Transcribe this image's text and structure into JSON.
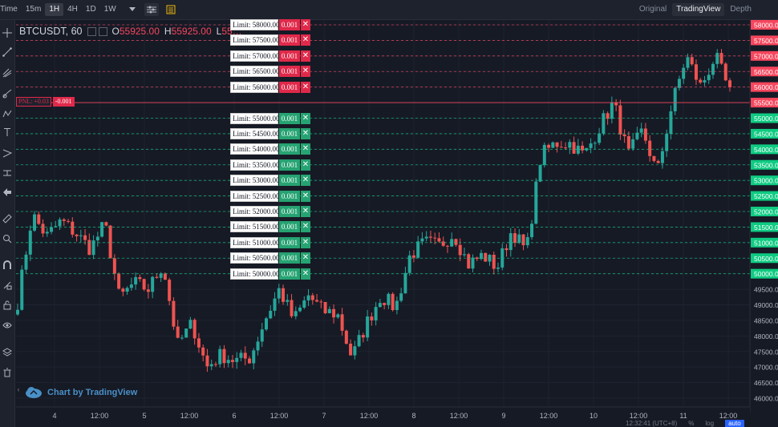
{
  "toolbar": {
    "time_label": "Time",
    "intervals": [
      "15m",
      "1H",
      "4H",
      "1D",
      "1W"
    ],
    "active_interval": "1H",
    "view_tabs": [
      "Original",
      "TradingView",
      "Depth"
    ],
    "active_view": "TradingView"
  },
  "legend": {
    "symbol": "BTCUSDT, 60",
    "o_label": "O",
    "o_value": "55925.00",
    "h_label": "H",
    "h_value": "55925.00",
    "l_label": "L",
    "l_value": "55…"
  },
  "pnl": {
    "label": "PNL: +0.03",
    "qty": "-0.001"
  },
  "orders": [
    {
      "label": "Limit: 58000.00",
      "qty": "0.001",
      "side": "sell",
      "price": 58000
    },
    {
      "label": "Limit: 57500.00",
      "qty": "0.001",
      "side": "sell",
      "price": 57500
    },
    {
      "label": "Limit: 57000.00",
      "qty": "0.001",
      "side": "sell",
      "price": 57000
    },
    {
      "label": "Limit: 56500.00",
      "qty": "0.001",
      "side": "sell",
      "price": 56500
    },
    {
      "label": "Limit: 56000.00",
      "qty": "0.001",
      "side": "sell",
      "price": 56000
    },
    {
      "label": "Limit: 55000.00",
      "qty": "0.001",
      "side": "buy",
      "price": 55000
    },
    {
      "label": "Limit: 54500.00",
      "qty": "0.001",
      "side": "buy",
      "price": 54500
    },
    {
      "label": "Limit: 54000.00",
      "qty": "0.001",
      "side": "buy",
      "price": 54000
    },
    {
      "label": "Limit: 53500.00",
      "qty": "0.001",
      "side": "buy",
      "price": 53500
    },
    {
      "label": "Limit: 53000.00",
      "qty": "0.001",
      "side": "buy",
      "price": 53000
    },
    {
      "label": "Limit: 52500.00",
      "qty": "0.001",
      "side": "buy",
      "price": 52500
    },
    {
      "label": "Limit: 52000.00",
      "qty": "0.001",
      "side": "buy",
      "price": 52000
    },
    {
      "label": "Limit: 51500.00",
      "qty": "0.001",
      "side": "buy",
      "price": 51500
    },
    {
      "label": "Limit: 51000.00",
      "qty": "0.001",
      "side": "buy",
      "price": 51000
    },
    {
      "label": "Limit: 50500.00",
      "qty": "0.001",
      "side": "buy",
      "price": 50500
    },
    {
      "label": "Limit: 50000.00",
      "qty": "0.001",
      "side": "buy",
      "price": 50000
    }
  ],
  "close_glyph": "✕",
  "price_axis": {
    "min": 46000,
    "max": 58000,
    "ticks": [
      "58000.00",
      "57500.00",
      "57000.00",
      "56500.00",
      "56000.00",
      "55500.00",
      "55000.00",
      "54500.00",
      "54000.00",
      "53500.00",
      "53000.00",
      "52500.00",
      "52000.00",
      "51500.00",
      "51000.00",
      "50500.00",
      "50000.00",
      "49500.00",
      "49000.00",
      "48500.00",
      "48000.00",
      "47500.00",
      "47000.00",
      "46500.00",
      "46000.00"
    ],
    "current_price": 55500,
    "colors": {
      "sell": "#f6465d",
      "buy": "#0ecb81",
      "current": "#f6465d"
    }
  },
  "time_axis": {
    "labels": [
      "4",
      "12:00",
      "5",
      "12:00",
      "6",
      "12:00",
      "7",
      "12:00",
      "8",
      "12:00",
      "9",
      "12:00",
      "10",
      "12:00",
      "11",
      "12:00"
    ]
  },
  "candle_colors": {
    "up": "#26a69a",
    "down": "#ef5350"
  },
  "watermark": "Chart by TradingView",
  "bottom_bar": {
    "clock": "12:32:41 (UTC+8)",
    "percent": "%",
    "log": "log",
    "auto": "auto"
  },
  "icons": {
    "filter": "filter-icon",
    "indicators": "indicator-icon",
    "left_tools": [
      "crosshair-icon",
      "trend-line-icon",
      "pitchfork-icon",
      "brush-icon",
      "text-icon",
      "pattern-icon",
      "measure-icon",
      "back-arrow-icon",
      "ruler-icon",
      "zoom-icon",
      "magnet-icon",
      "lock-drawing-icon",
      "lock-icon",
      "eye-icon",
      "layers-icon",
      "trash-icon"
    ]
  },
  "chart_data": {
    "type": "candlestick",
    "symbol": "BTCUSDT",
    "interval": "60",
    "ylim": [
      46000,
      58000
    ],
    "x": [
      "4",
      "12:00",
      "5",
      "12:00",
      "6",
      "12:00",
      "7",
      "12:00",
      "8",
      "12:00",
      "9",
      "12:00",
      "10",
      "12:00",
      "11",
      "12:00"
    ],
    "anchors": [
      49100,
      51900,
      51200,
      51700,
      51300,
      50800,
      51600,
      49200,
      49700,
      49500,
      50300,
      47700,
      48400,
      47000,
      47400,
      47200,
      47300,
      48500,
      49500,
      48500,
      49300,
      48800,
      48700,
      47300,
      48400,
      49300,
      48900,
      50600,
      51000,
      50900,
      51300,
      50300,
      50600,
      50200,
      51400,
      50700,
      53800,
      54200,
      54200,
      53800,
      54700,
      55500,
      53800,
      54600,
      53200,
      55400,
      57000,
      56000,
      57000,
      55800
    ]
  }
}
